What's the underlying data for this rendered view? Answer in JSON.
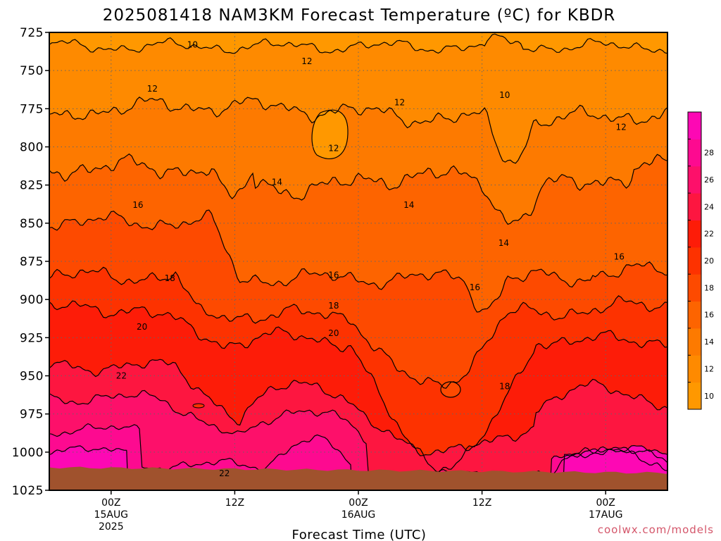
{
  "chart_data": {
    "type": "heatmap",
    "title": "2025081418 NAM3KM Forecast Temperature (ºC) for KBDR",
    "xlabel": "Forecast Time (UTC)",
    "ylabel": "",
    "y_scale": "pressure (hPa), inverted",
    "y_ticks": [
      725,
      750,
      775,
      800,
      825,
      850,
      875,
      900,
      925,
      950,
      975,
      1000,
      1025
    ],
    "ylim": [
      725,
      1025
    ],
    "x_ticks": [
      {
        "hour": 6,
        "label": "00Z",
        "sub": "15AUG",
        "year": "2025"
      },
      {
        "hour": 18,
        "label": "12Z",
        "sub": "",
        "year": ""
      },
      {
        "hour": 30,
        "label": "00Z",
        "sub": "16AUG",
        "year": ""
      },
      {
        "hour": 42,
        "label": "12Z",
        "sub": "",
        "year": ""
      },
      {
        "hour": 54,
        "label": "00Z",
        "sub": "17AUG",
        "year": ""
      }
    ],
    "xlim_hours": [
      0,
      60
    ],
    "grid": true,
    "contour_interval": 2,
    "contour_labels": [
      {
        "hour": 13.9,
        "p": 733,
        "text": "10"
      },
      {
        "hour": 25.0,
        "p": 744,
        "text": "12"
      },
      {
        "hour": 10.0,
        "p": 762,
        "text": "12"
      },
      {
        "hour": 34.0,
        "p": 771,
        "text": "12"
      },
      {
        "hour": 44.2,
        "p": 766,
        "text": "10"
      },
      {
        "hour": 27.6,
        "p": 801,
        "text": "12"
      },
      {
        "hour": 55.5,
        "p": 787,
        "text": "12"
      },
      {
        "hour": 22.1,
        "p": 823,
        "text": "14"
      },
      {
        "hour": 8.6,
        "p": 838,
        "text": "16"
      },
      {
        "hour": 34.9,
        "p": 838,
        "text": "14"
      },
      {
        "hour": 44.1,
        "p": 863,
        "text": "14"
      },
      {
        "hour": 11.7,
        "p": 886,
        "text": "18"
      },
      {
        "hour": 27.6,
        "p": 884,
        "text": "16"
      },
      {
        "hour": 41.3,
        "p": 892,
        "text": "16"
      },
      {
        "hour": 55.3,
        "p": 872,
        "text": "16"
      },
      {
        "hour": 27.6,
        "p": 904,
        "text": "18"
      },
      {
        "hour": 9.0,
        "p": 918,
        "text": "20"
      },
      {
        "hour": 27.6,
        "p": 922,
        "text": "20"
      },
      {
        "hour": 7.0,
        "p": 950,
        "text": "22"
      },
      {
        "hour": 44.2,
        "p": 957,
        "text": "18"
      },
      {
        "hour": 17.0,
        "p": 1014,
        "text": "22"
      }
    ],
    "colorbar": {
      "levels": [
        10,
        12,
        14,
        16,
        18,
        20,
        22,
        24,
        26,
        28
      ],
      "labels": [
        "10",
        "12",
        "14",
        "16",
        "18",
        "20",
        "22",
        "24",
        "26",
        "28"
      ],
      "colors": [
        "#ff9800",
        "#fe8a00",
        "#fd7a00",
        "#fd6400",
        "#fd4a00",
        "#fd3200",
        "#fd1c08",
        "#fd1640",
        "#fd106a",
        "#fd0a90",
        "#fd08b4"
      ]
    },
    "surface_pressure_hpa": 1010,
    "colors": {
      "ground": "#a0522d",
      "background_warm": "#ff9800",
      "contour": "#000000",
      "grid": "#666666"
    }
  },
  "credit": "coolwx.com/models"
}
